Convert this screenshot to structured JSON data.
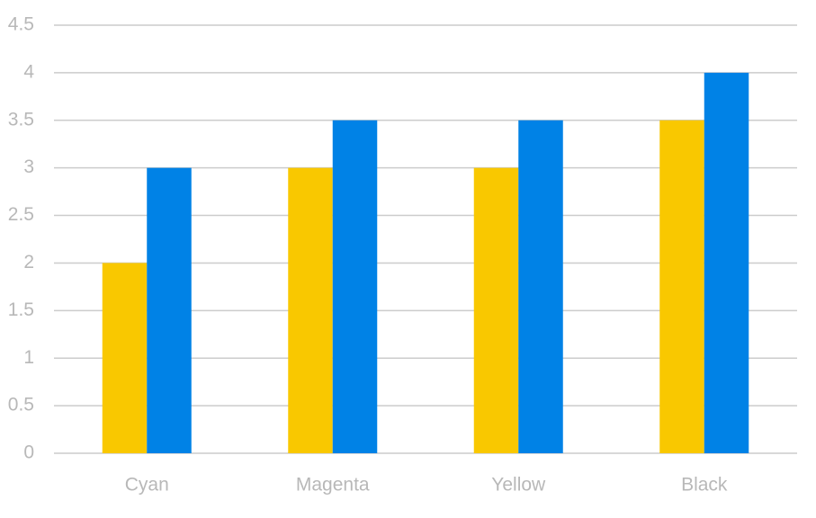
{
  "chart_data": {
    "type": "bar",
    "categories": [
      "Cyan",
      "Magenta",
      "Yellow",
      "Black"
    ],
    "series": [
      {
        "color": "#f9c800",
        "values": [
          2,
          3,
          3,
          3.5
        ]
      },
      {
        "color": "#0082e6",
        "values": [
          3,
          3.5,
          3.5,
          4
        ]
      }
    ],
    "ylim": [
      0,
      4.5
    ],
    "yticks": [
      0,
      0.5,
      1,
      1.5,
      2,
      2.5,
      3,
      3.5,
      4,
      4.5
    ],
    "grid": true
  }
}
